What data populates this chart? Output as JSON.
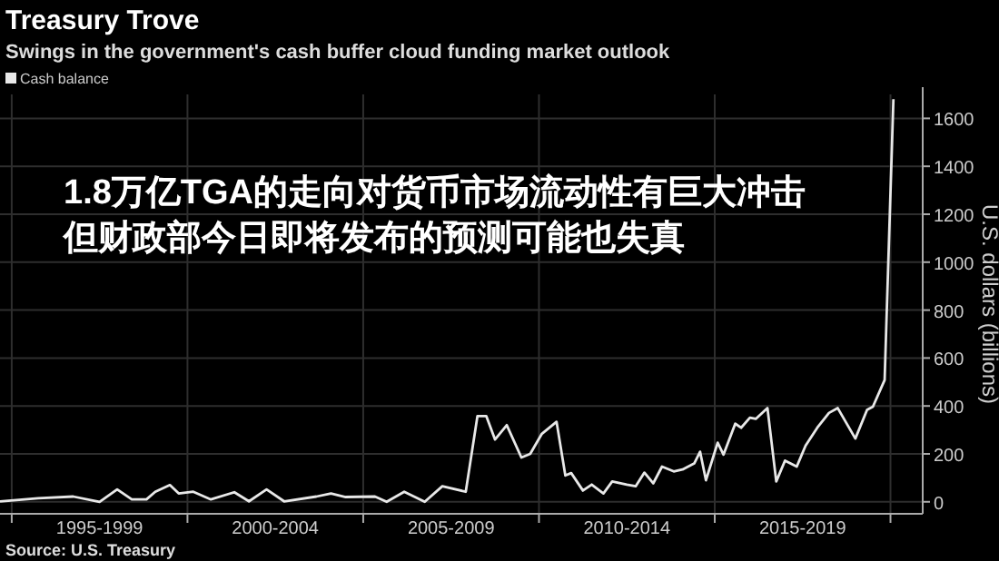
{
  "chart_data": {
    "type": "line",
    "title": "Treasury Trove",
    "subtitle": "Swings in the government's cash buffer cloud funding market outlook",
    "ylabel": "U.S. dollars (billions)",
    "annotations": [
      "1.8万亿TGA的走向对货币市场流动性有巨大冲击",
      "但财政部今日即将发布的预测可能也失真",
      "Source: U.S. Treasury"
    ],
    "series": [
      {
        "name": "Cash balance",
        "color": "#e8e8e8",
        "x": [
          "1994-09",
          "1995-10",
          "1996-10",
          "1997-07",
          "1998-01",
          "1998-06",
          "1998-11",
          "1999-02",
          "1999-07",
          "1999-10",
          "2000-03",
          "2000-09",
          "2001-05",
          "2001-10",
          "2002-04",
          "2002-10",
          "2003-09",
          "2004-02",
          "2004-07",
          "2005-05",
          "2005-09",
          "2006-03",
          "2006-10",
          "2007-04",
          "2007-12",
          "2008-04",
          "2008-07",
          "2008-10",
          "2009-02",
          "2009-07",
          "2009-10",
          "2010-02",
          "2010-07",
          "2010-10",
          "2010-12",
          "2011-04",
          "2011-07",
          "2011-11",
          "2012-02",
          "2012-07",
          "2012-10",
          "2013-01",
          "2013-04",
          "2013-07",
          "2013-11",
          "2014-02",
          "2014-06",
          "2014-08",
          "2014-10",
          "2015-02",
          "2015-04",
          "2015-08",
          "2015-10",
          "2016-01",
          "2016-03",
          "2016-07",
          "2016-10",
          "2017-01",
          "2017-05",
          "2017-08",
          "2017-12",
          "2018-04",
          "2018-07",
          "2019-01",
          "2019-05",
          "2019-07",
          "2019-11",
          "2020-02"
        ],
        "values": [
          2,
          15,
          22,
          0,
          52,
          10,
          10,
          42,
          70,
          35,
          42,
          10,
          40,
          2,
          52,
          2,
          22,
          35,
          20,
          22,
          0,
          42,
          0,
          65,
          42,
          358,
          358,
          260,
          320,
          185,
          200,
          284,
          334,
          110,
          120,
          47,
          72,
          35,
          85,
          72,
          65,
          122,
          77,
          147,
          127,
          135,
          160,
          209,
          90,
          247,
          197,
          326,
          309,
          351,
          346,
          391,
          85,
          172,
          147,
          234,
          309,
          371,
          391,
          264,
          384,
          397,
          508,
          1680
        ]
      }
    ],
    "xlim": [
      "1994-09",
      "2020-12"
    ],
    "ylim": [
      -50,
      1700
    ],
    "xticks": [
      {
        "value": "1995-01",
        "label": null
      },
      {
        "value": "1997-07",
        "label": "1995-1999"
      },
      {
        "value": "2000-01",
        "label": null
      },
      {
        "value": "2002-07",
        "label": "2000-2004"
      },
      {
        "value": "2005-01",
        "label": null
      },
      {
        "value": "2007-07",
        "label": "2005-2009"
      },
      {
        "value": "2010-01",
        "label": null
      },
      {
        "value": "2012-07",
        "label": "2010-2014"
      },
      {
        "value": "2015-01",
        "label": null
      },
      {
        "value": "2017-07",
        "label": "2015-2019"
      },
      {
        "value": "2020-01",
        "label": null
      }
    ],
    "yticks": [
      0,
      200,
      400,
      600,
      800,
      1000,
      1200,
      1400,
      1600
    ],
    "grid": true,
    "legend": "top left"
  }
}
